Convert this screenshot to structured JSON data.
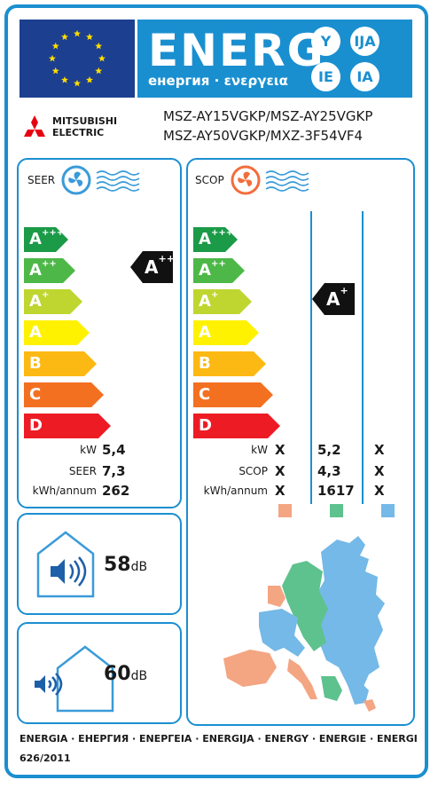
{
  "header": {
    "title": "ENERG",
    "subtitle": "енергия · ενεργεια",
    "languages": [
      "Y",
      "IJA",
      "IE",
      "IA"
    ]
  },
  "brand": {
    "name": "MITSUBISHI\nELECTRIC"
  },
  "models": [
    "MSZ-AY15VGKP/MSZ-AY25VGKP",
    "MSZ-AY50VGKP/MXZ-3F54VF4"
  ],
  "scales": [
    {
      "letter": "A",
      "sup": "+++",
      "color": "#1b9a48"
    },
    {
      "letter": "A",
      "sup": "++",
      "color": "#4db848"
    },
    {
      "letter": "A",
      "sup": "+",
      "color": "#bed62f"
    },
    {
      "letter": "A",
      "sup": "",
      "color": "#fff200"
    },
    {
      "letter": "B",
      "sup": "",
      "color": "#fdb913"
    },
    {
      "letter": "C",
      "sup": "",
      "color": "#f37021"
    },
    {
      "letter": "D",
      "sup": "",
      "color": "#ed1c24"
    }
  ],
  "seer": {
    "title": "SEER",
    "rating": {
      "letter": "A",
      "sup": "++"
    },
    "labels": [
      "kW",
      "SEER",
      "kWh/annum"
    ],
    "values": [
      "5,4",
      "7,3",
      "262"
    ]
  },
  "scop": {
    "title": "SCOP",
    "rating": {
      "letter": "A",
      "sup": "+"
    },
    "labels": [
      "kW",
      "SCOP",
      "kWh/annum"
    ],
    "columns": [
      [
        "X",
        "X",
        "X"
      ],
      [
        "5,2",
        "4,3",
        "1617"
      ],
      [
        "X",
        "X",
        "X"
      ]
    ],
    "zone_colors": [
      "#f4a582",
      "#5ec28e",
      "#74b9e7"
    ]
  },
  "noise": {
    "indoor": {
      "value": "58",
      "unit": "dB"
    },
    "outdoor": {
      "value": "60",
      "unit": "dB"
    }
  },
  "footer": {
    "languages": "ENERGIA · ЕНЕРГИЯ · ΕΝΕΡΓΕΙΑ · ENERGIJA · ENERGY · ENERGIE · ENERGI",
    "regulation": "626/2011"
  }
}
